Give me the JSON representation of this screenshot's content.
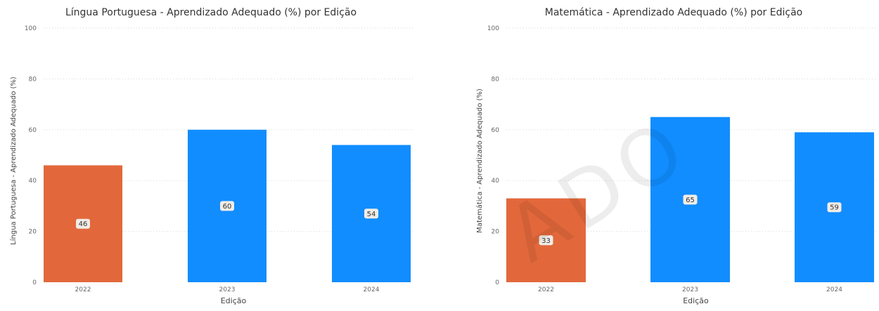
{
  "chart_data": [
    {
      "type": "bar",
      "title": "Língua Portuguesa - Aprendizado Adequado (%) por Edição",
      "xlabel": "Edição",
      "ylabel": "Língua Portuguesa - Aprendizado Adequado (%)",
      "categories": [
        "2022",
        "2023",
        "2024"
      ],
      "values": [
        46,
        60,
        54
      ],
      "data_labels": [
        "46",
        "60",
        "54"
      ],
      "colors": [
        "#e2683c",
        "#118dff",
        "#118dff"
      ],
      "ylim": [
        0,
        100
      ],
      "yticks": [
        0,
        20,
        40,
        60,
        80,
        100
      ],
      "ytick_labels": [
        "0",
        "20",
        "40",
        "60",
        "80",
        "100"
      ],
      "grid": true,
      "legend": "none"
    },
    {
      "type": "bar",
      "title": "Matemática - Aprendizado Adequado (%) por Edição",
      "xlabel": "Edição",
      "ylabel": "Matemática - Aprendizado Adequado (%)",
      "categories": [
        "2022",
        "2023",
        "2024"
      ],
      "values": [
        33,
        65,
        59
      ],
      "data_labels": [
        "33",
        "65",
        "59"
      ],
      "colors": [
        "#e2683c",
        "#118dff",
        "#118dff"
      ],
      "ylim": [
        0,
        100
      ],
      "yticks": [
        0,
        20,
        40,
        60,
        80,
        100
      ],
      "ytick_labels": [
        "0",
        "20",
        "40",
        "60",
        "80",
        "100"
      ],
      "grid": true,
      "legend": "none"
    }
  ],
  "watermark": "ADO"
}
